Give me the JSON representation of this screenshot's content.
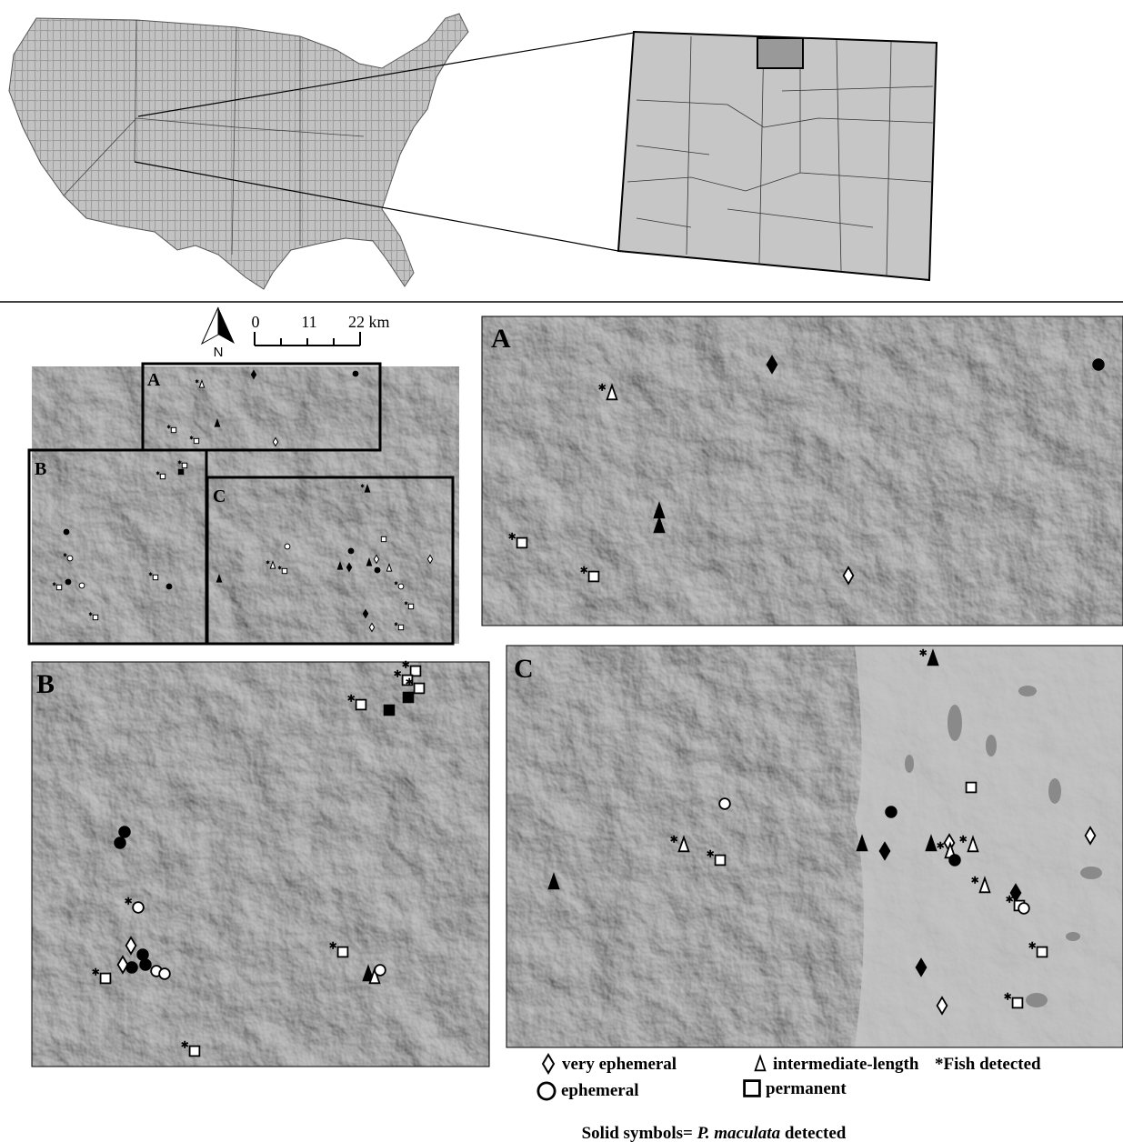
{
  "labels": [
    "A",
    "B",
    "C"
  ],
  "scale_bar": {
    "north": "N",
    "ticks": [
      "0",
      "11",
      "22 km"
    ]
  },
  "legend": {
    "items": [
      "very ephemeral",
      "intermediate-length",
      "*Fish detected",
      "ephemeral",
      "permanent"
    ],
    "note": {
      "prefix": "Solid symbols= ",
      "species": "P. maculata",
      "suffix": " detected"
    }
  }
}
